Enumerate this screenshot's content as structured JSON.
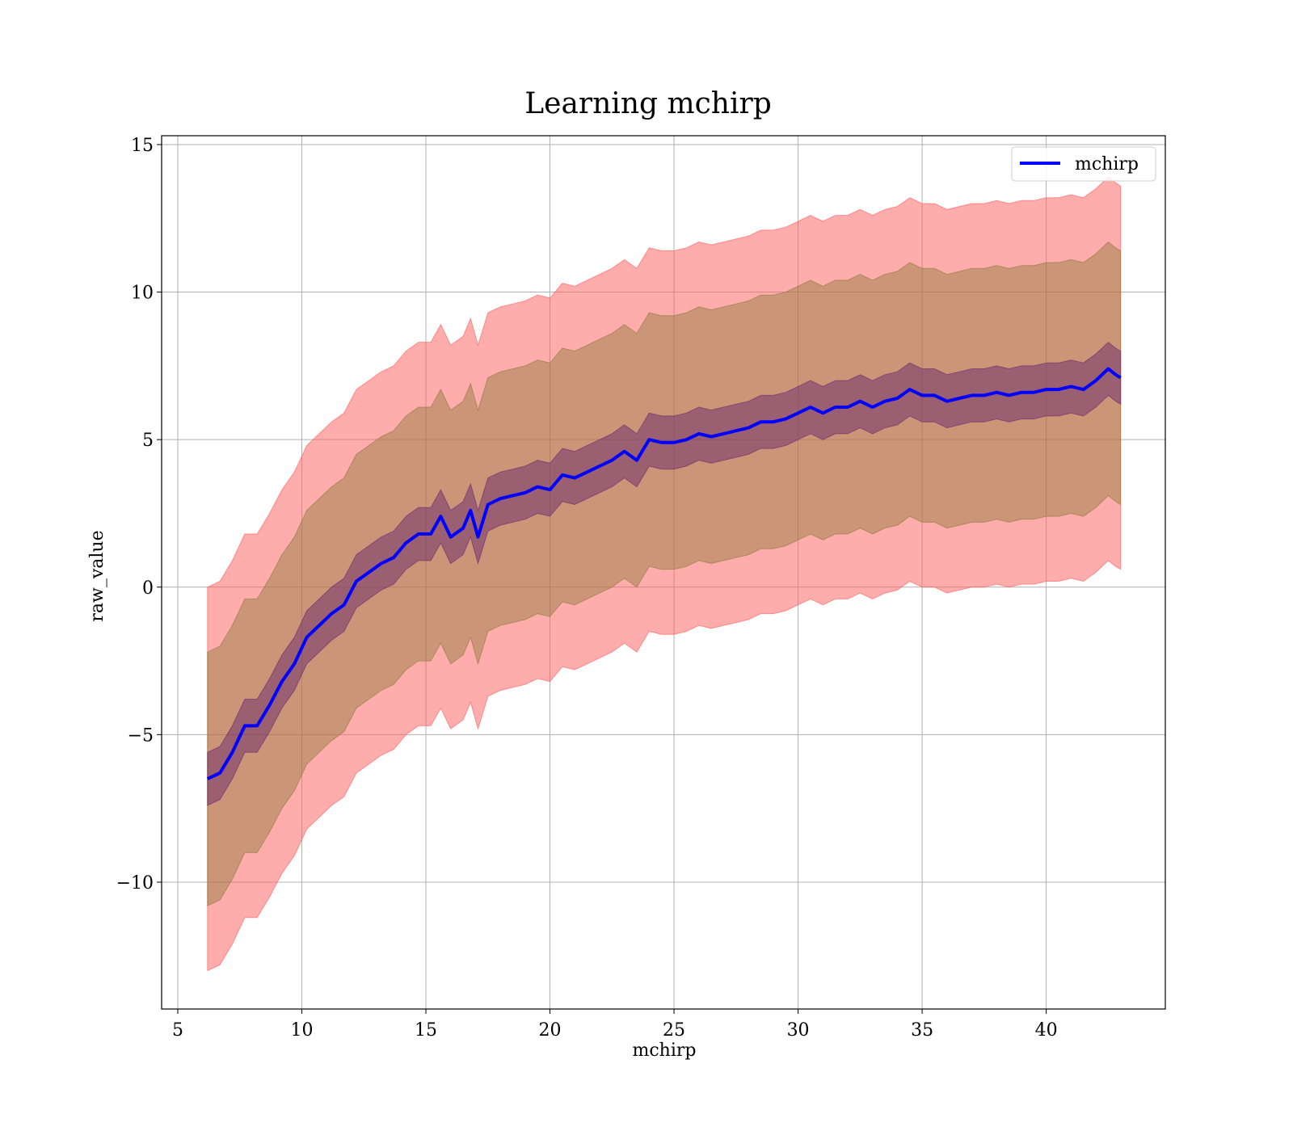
{
  "chart_data": {
    "type": "line",
    "title": "Learning mchirp",
    "xlabel": "mchirp",
    "ylabel": "raw_value",
    "xlim": [
      4.35,
      44.8
    ],
    "ylim": [
      -14.3,
      15.3
    ],
    "xticks": [
      5,
      10,
      15,
      20,
      25,
      30,
      35,
      40
    ],
    "yticks": [
      -10,
      -5,
      0,
      5,
      10,
      15
    ],
    "xtick_labels": [
      "5",
      "10",
      "15",
      "20",
      "25",
      "30",
      "35",
      "40"
    ],
    "ytick_labels": [
      "−10",
      "−5",
      "0",
      "5",
      "10",
      "15"
    ],
    "grid": true,
    "legend": {
      "position": "top-right",
      "entries": [
        "mchirp"
      ]
    },
    "colors": {
      "line": "#0000ff",
      "band_outer": "#ff5a5a",
      "band_middle": "#8c7a3a",
      "band_inner": "#6a2a6a"
    },
    "series": [
      {
        "name": "mchirp",
        "x": [
          6.2,
          6.7,
          7.2,
          7.7,
          8.2,
          8.7,
          9.2,
          9.7,
          10.2,
          10.7,
          11.2,
          11.7,
          12.2,
          12.7,
          13.2,
          13.7,
          14.2,
          14.7,
          15.2,
          15.6,
          16.0,
          16.5,
          16.8,
          17.1,
          17.5,
          18.0,
          18.5,
          19.0,
          19.5,
          20.0,
          20.5,
          21.0,
          21.5,
          22.0,
          22.5,
          23.0,
          23.5,
          24.0,
          24.5,
          25.0,
          25.5,
          26.0,
          26.5,
          27.0,
          27.5,
          28.0,
          28.5,
          29.0,
          29.5,
          30.0,
          30.5,
          31.0,
          31.5,
          32.0,
          32.5,
          33.0,
          33.5,
          34.0,
          34.5,
          35.0,
          35.5,
          36.0,
          36.5,
          37.0,
          37.5,
          38.0,
          38.5,
          39.0,
          39.5,
          40.0,
          40.5,
          41.0,
          41.5,
          42.0,
          42.5,
          42.8,
          43.0
        ],
        "mean": [
          -6.5,
          -6.3,
          -5.6,
          -4.7,
          -4.7,
          -4.0,
          -3.2,
          -2.6,
          -1.7,
          -1.3,
          -0.9,
          -0.6,
          0.2,
          0.5,
          0.8,
          1.0,
          1.5,
          1.8,
          1.8,
          2.4,
          1.7,
          2.0,
          2.6,
          1.7,
          2.8,
          3.0,
          3.1,
          3.2,
          3.4,
          3.3,
          3.8,
          3.7,
          3.9,
          4.1,
          4.3,
          4.6,
          4.3,
          5.0,
          4.9,
          4.9,
          5.0,
          5.2,
          5.1,
          5.2,
          5.3,
          5.4,
          5.6,
          5.6,
          5.7,
          5.9,
          6.1,
          5.9,
          6.1,
          6.1,
          6.3,
          6.1,
          6.3,
          6.4,
          6.7,
          6.5,
          6.5,
          6.3,
          6.4,
          6.5,
          6.5,
          6.6,
          6.5,
          6.6,
          6.6,
          6.7,
          6.7,
          6.8,
          6.7,
          7.0,
          7.4,
          7.2,
          7.1
        ],
        "inner_halfwidth": [
          0.9,
          0.9,
          0.9,
          0.9,
          0.9,
          0.9,
          0.9,
          0.9,
          0.9,
          0.9,
          0.9,
          0.9,
          0.9,
          0.9,
          0.9,
          0.9,
          0.9,
          0.9,
          0.9,
          0.9,
          0.9,
          0.9,
          0.9,
          0.9,
          0.9,
          0.9,
          0.9,
          0.9,
          0.9,
          0.9,
          0.9,
          0.9,
          0.9,
          0.9,
          0.9,
          0.9,
          0.9,
          0.9,
          0.9,
          0.9,
          0.9,
          0.9,
          0.9,
          0.9,
          0.9,
          0.9,
          0.9,
          0.9,
          0.9,
          0.9,
          0.9,
          0.9,
          0.9,
          0.9,
          0.9,
          0.9,
          0.9,
          0.9,
          0.9,
          0.9,
          0.9,
          0.9,
          0.9,
          0.9,
          0.9,
          0.9,
          0.9,
          0.9,
          0.9,
          0.9,
          0.9,
          0.9,
          0.9,
          0.9,
          0.9,
          0.9,
          0.9
        ],
        "middle_halfwidth": [
          4.3,
          4.3,
          4.3,
          4.3,
          4.3,
          4.3,
          4.3,
          4.3,
          4.3,
          4.3,
          4.3,
          4.3,
          4.3,
          4.3,
          4.3,
          4.3,
          4.3,
          4.3,
          4.3,
          4.3,
          4.3,
          4.3,
          4.3,
          4.3,
          4.3,
          4.3,
          4.3,
          4.3,
          4.3,
          4.3,
          4.3,
          4.3,
          4.3,
          4.3,
          4.3,
          4.3,
          4.3,
          4.3,
          4.3,
          4.3,
          4.3,
          4.3,
          4.3,
          4.3,
          4.3,
          4.3,
          4.3,
          4.3,
          4.3,
          4.3,
          4.3,
          4.3,
          4.3,
          4.3,
          4.3,
          4.3,
          4.3,
          4.3,
          4.3,
          4.3,
          4.3,
          4.3,
          4.3,
          4.3,
          4.3,
          4.3,
          4.3,
          4.3,
          4.3,
          4.3,
          4.3,
          4.3,
          4.3,
          4.3,
          4.3,
          4.3,
          4.3
        ],
        "outer_halfwidth": [
          6.5,
          6.5,
          6.5,
          6.5,
          6.5,
          6.5,
          6.5,
          6.5,
          6.5,
          6.5,
          6.5,
          6.5,
          6.5,
          6.5,
          6.5,
          6.5,
          6.5,
          6.5,
          6.5,
          6.5,
          6.5,
          6.5,
          6.5,
          6.5,
          6.5,
          6.5,
          6.5,
          6.5,
          6.5,
          6.5,
          6.5,
          6.5,
          6.5,
          6.5,
          6.5,
          6.5,
          6.5,
          6.5,
          6.5,
          6.5,
          6.5,
          6.5,
          6.5,
          6.5,
          6.5,
          6.5,
          6.5,
          6.5,
          6.5,
          6.5,
          6.5,
          6.5,
          6.5,
          6.5,
          6.5,
          6.5,
          6.5,
          6.5,
          6.5,
          6.5,
          6.5,
          6.5,
          6.5,
          6.5,
          6.5,
          6.5,
          6.5,
          6.5,
          6.5,
          6.5,
          6.5,
          6.5,
          6.5,
          6.5,
          6.5,
          6.5,
          6.5
        ]
      }
    ]
  }
}
